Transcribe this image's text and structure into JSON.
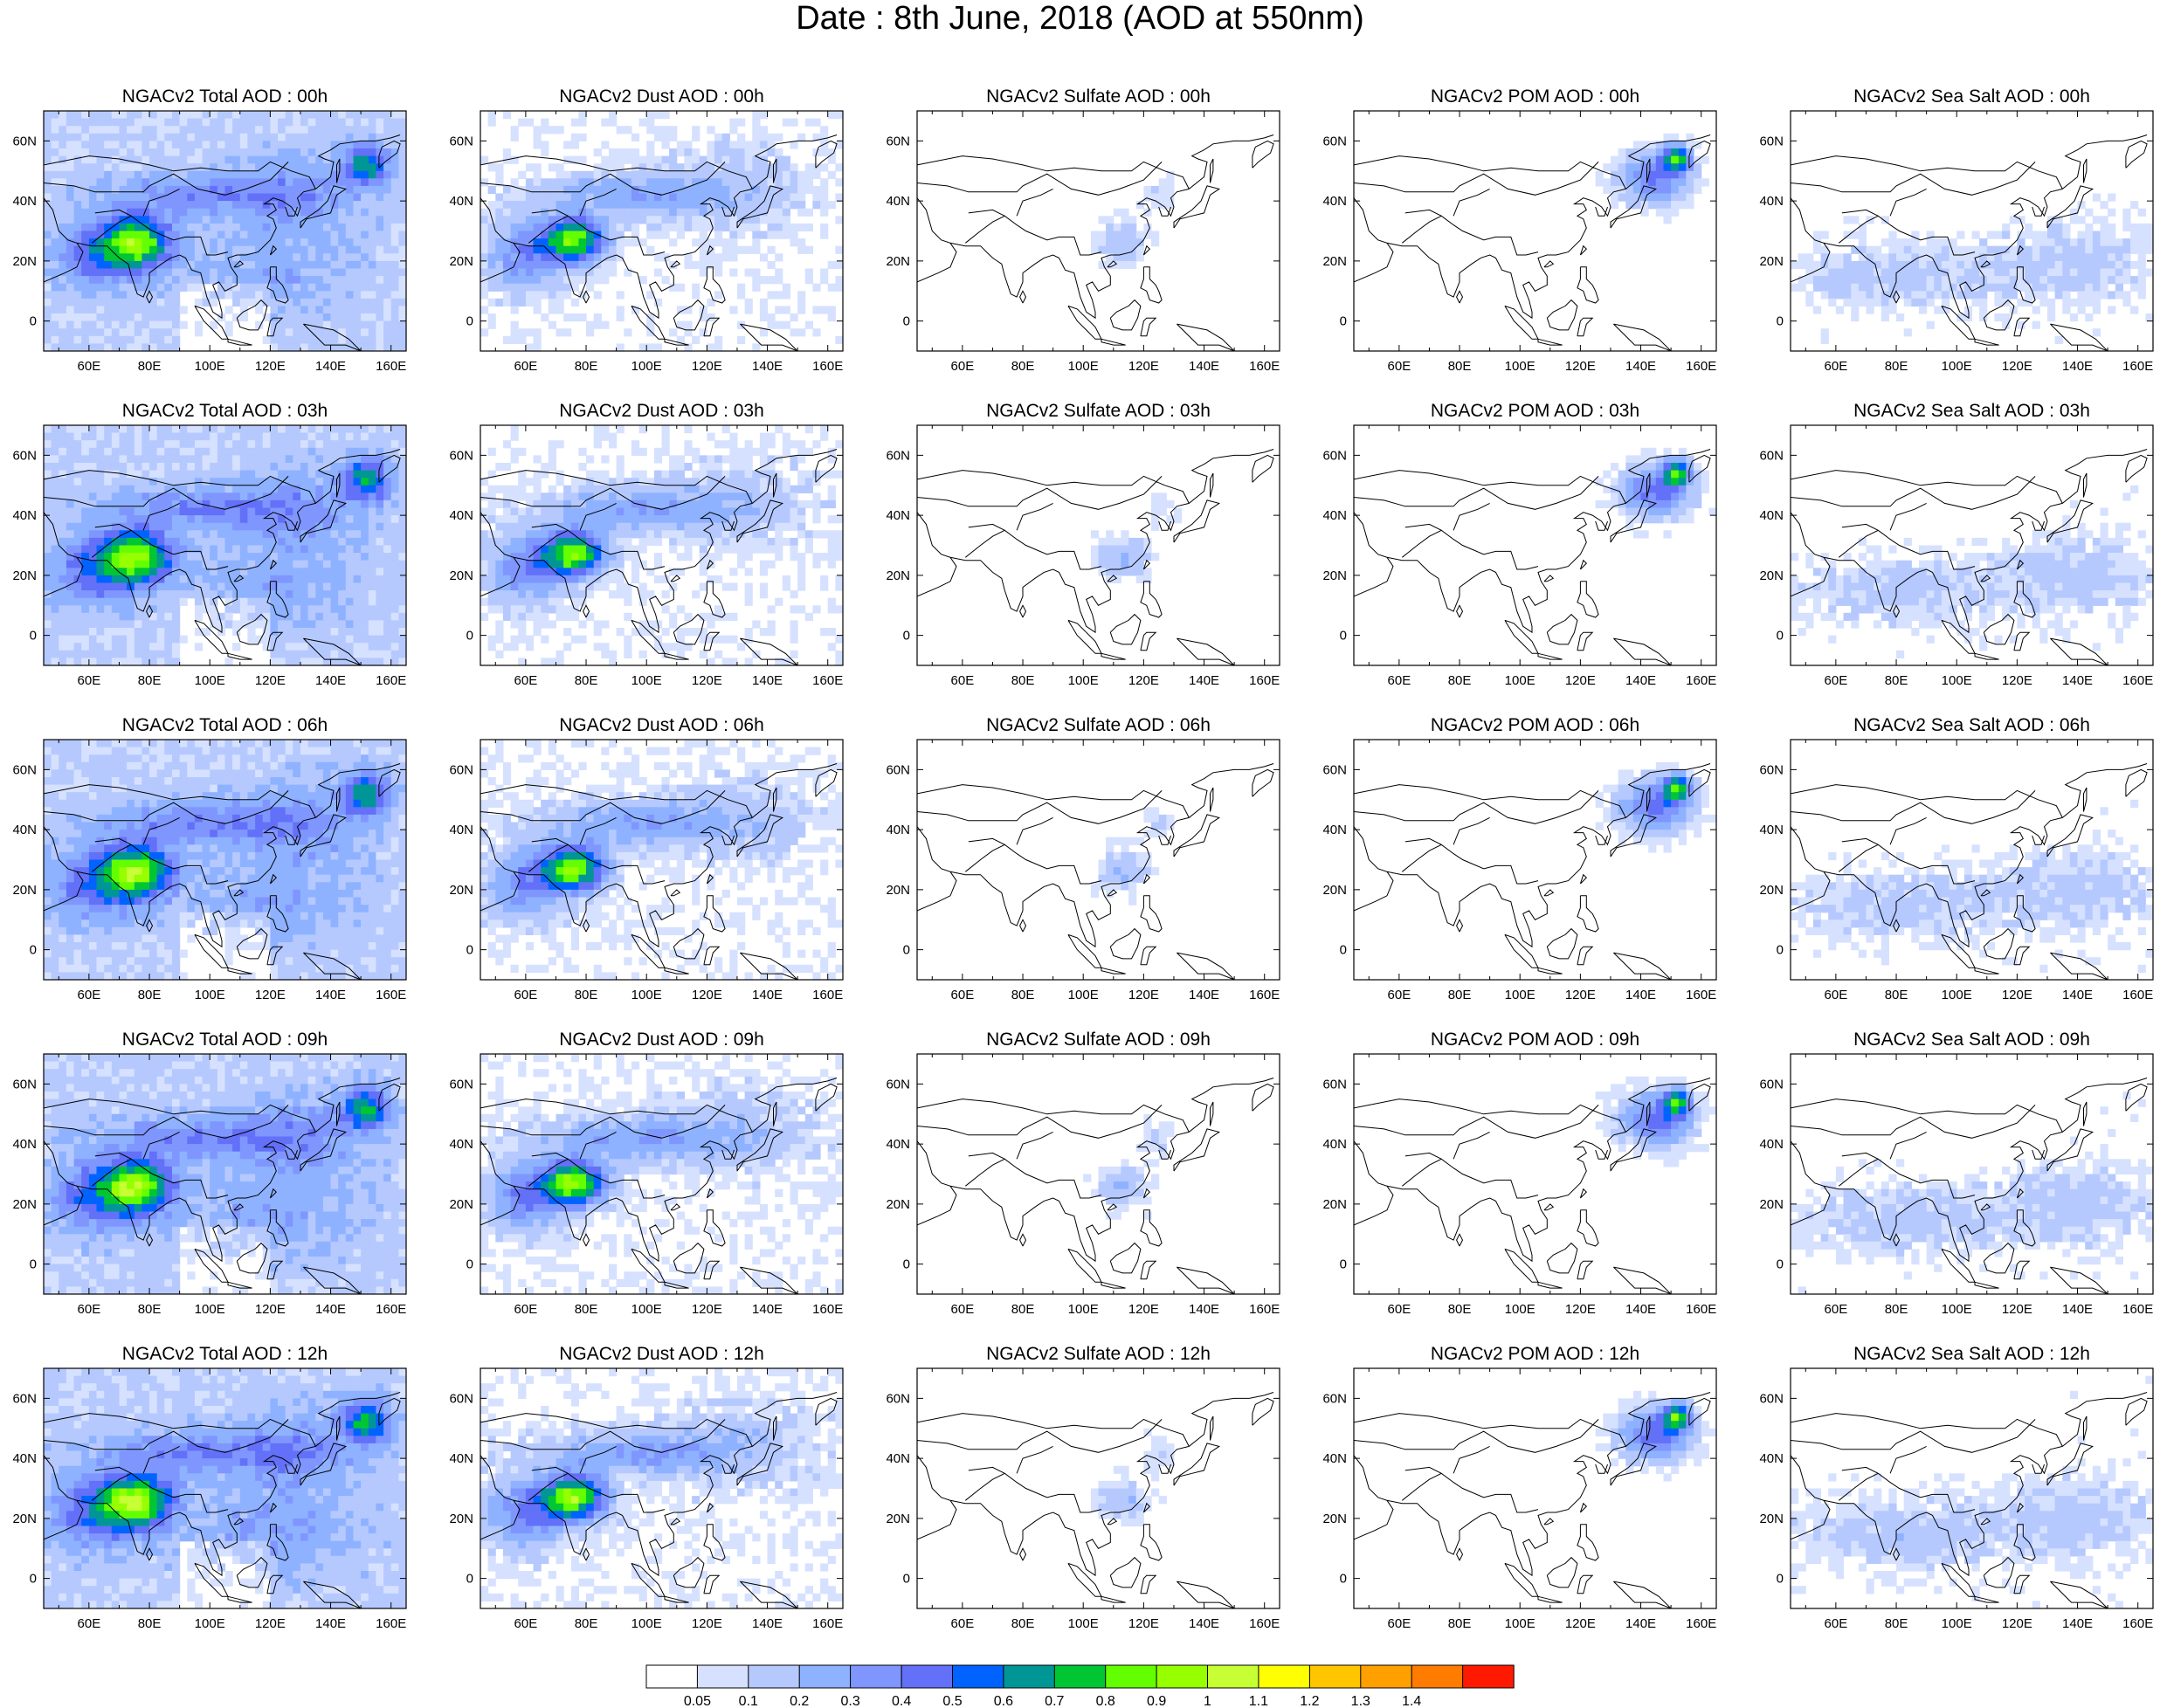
{
  "title": "Date : 8th June, 2018 (AOD at 550nm)",
  "rows": [
    "00h",
    "03h",
    "06h",
    "09h",
    "12h"
  ],
  "columns": [
    "Total",
    "Dust",
    "Sulfate",
    "POM",
    "Sea Salt"
  ],
  "panel_titles": [
    [
      "NGACv2 Total AOD : 00h",
      "NGACv2 Dust AOD : 00h",
      "NGACv2 Sulfate AOD : 00h",
      "NGACv2 POM AOD : 00h",
      "NGACv2 Sea Salt AOD : 00h"
    ],
    [
      "NGACv2 Total AOD : 03h",
      "NGACv2 Dust AOD : 03h",
      "NGACv2 Sulfate AOD : 03h",
      "NGACv2 POM AOD : 03h",
      "NGACv2 Sea Salt AOD : 03h"
    ],
    [
      "NGACv2 Total AOD : 06h",
      "NGACv2 Dust AOD : 06h",
      "NGACv2 Sulfate AOD : 06h",
      "NGACv2 POM AOD : 06h",
      "NGACv2 Sea Salt AOD : 06h"
    ],
    [
      "NGACv2 Total AOD : 09h",
      "NGACv2 Dust AOD : 09h",
      "NGACv2 Sulfate AOD : 09h",
      "NGACv2 POM AOD : 09h",
      "NGACv2 Sea Salt  AOD : 09h"
    ],
    [
      "NGACv2 Total AOD  : 12h",
      "NGACv2 Dust AOD : 12h",
      "NGACv2 Sulfate AOD : 12h",
      "NGACv2 POM  AOD : 12h",
      "NGACv2 Sea Salt  AOD : 12h"
    ]
  ],
  "lat_labels": [
    "60N",
    "40N",
    "20N",
    "0"
  ],
  "lon_labels": [
    "60E",
    "80E",
    "100E",
    "120E",
    "140E",
    "160E"
  ],
  "colorbar": {
    "labels": [
      "0.05",
      "0.1",
      "0.2",
      "0.3",
      "0.4",
      "0.5",
      "0.6",
      "0.7",
      "0.8",
      "0.9",
      "1",
      "1.1",
      "1.2",
      "1.3",
      "1.4"
    ],
    "colors": [
      "#ffffff",
      "#d6e1ff",
      "#b5c9ff",
      "#8eb2ff",
      "#7f96ff",
      "#6370f8",
      "#0063ff",
      "#009696",
      "#00c633",
      "#63ff00",
      "#96ff00",
      "#c6ff33",
      "#ffff00",
      "#ffc600",
      "#ffa000",
      "#ff7c00",
      "#ff1900"
    ]
  }
}
